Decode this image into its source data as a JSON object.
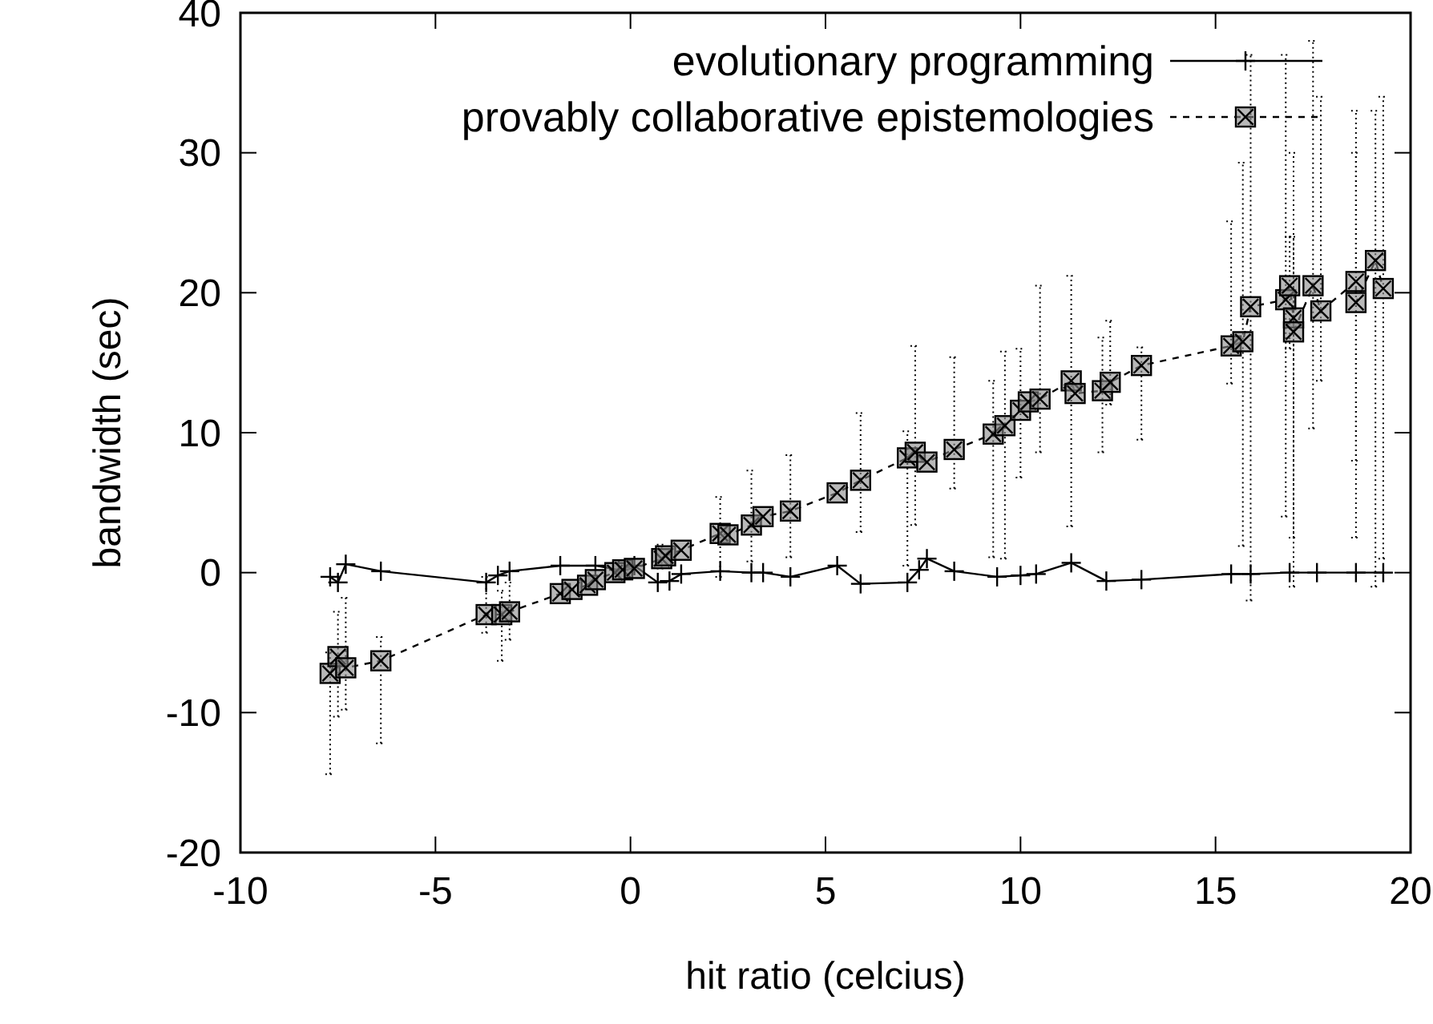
{
  "chart_data": {
    "type": "line",
    "xlabel": "hit ratio (celcius)",
    "ylabel": "bandwidth (sec)",
    "xlim": [
      -10,
      20
    ],
    "xticks": [
      -10,
      -5,
      0,
      5,
      10,
      15,
      20
    ],
    "ylim": [
      -20,
      40
    ],
    "yticks": [
      -20,
      -10,
      0,
      10,
      20,
      30,
      40
    ],
    "grid": false,
    "legend": "top right",
    "series": [
      {
        "name": "evolutionary programming",
        "color": "#000000",
        "marker": "cross",
        "line_style": "solid",
        "x": [
          -7.7,
          -7.5,
          -7.3,
          -6.4,
          -3.7,
          -3.4,
          -3.1,
          -1.8,
          -0.9,
          -0.3,
          0.1,
          0.7,
          1.0,
          1.3,
          2.3,
          3.1,
          3.4,
          4.1,
          5.3,
          5.9,
          7.1,
          7.4,
          7.6,
          8.3,
          9.4,
          10.0,
          10.4,
          11.3,
          12.2,
          13.1,
          15.4,
          15.9,
          16.9,
          17.6,
          18.6,
          19.3
        ],
        "values": [
          -0.3,
          -0.7,
          0.6,
          0.1,
          -0.7,
          -0.2,
          0.1,
          0.5,
          0.5,
          0.2,
          0.5,
          -0.7,
          -0.6,
          -0.1,
          0.1,
          0,
          0,
          -0.3,
          0.5,
          -0.8,
          -0.7,
          0.2,
          1.0,
          0.1,
          -0.3,
          -0.2,
          -0.1,
          0.7,
          -0.6,
          -0.5,
          -0.1,
          -0.1,
          0,
          0,
          0,
          0
        ]
      },
      {
        "name": "provably collaborative epistemologies",
        "color": "#000000",
        "marker": "square",
        "line_style": "dashed",
        "x": [
          -7.7,
          -7.5,
          -7.3,
          -6.4,
          -3.7,
          -3.3,
          -3.1,
          -1.8,
          -1.5,
          -1.1,
          -0.9,
          -0.4,
          -0.2,
          0.1,
          0.8,
          0.9,
          1.3,
          2.3,
          2.5,
          3.1,
          3.4,
          4.1,
          5.3,
          5.9,
          7.1,
          7.3,
          7.6,
          8.3,
          9.3,
          9.6,
          10.0,
          10.2,
          10.5,
          11.3,
          11.4,
          12.1,
          12.3,
          13.1,
          15.4,
          15.7,
          15.9,
          16.8,
          16.9,
          17.0,
          17.0,
          17.5,
          17.7,
          18.6,
          18.6,
          19.1,
          19.3
        ],
        "values": [
          -7.2,
          -6.0,
          -6.8,
          -6.3,
          -3.0,
          -3.0,
          -2.8,
          -1.5,
          -1.2,
          -0.9,
          -0.5,
          0,
          0.2,
          0.3,
          1.0,
          1.2,
          1.6,
          2.8,
          2.7,
          3.4,
          4.0,
          4.4,
          5.7,
          6.6,
          8.2,
          8.6,
          7.9,
          8.8,
          9.9,
          10.5,
          11.6,
          12.2,
          12.4,
          13.7,
          12.8,
          13.0,
          13.6,
          14.8,
          16.2,
          16.5,
          19.0,
          19.5,
          20.5,
          18.2,
          17.2,
          20.5,
          18.7,
          20.8,
          19.3,
          22.3,
          20.3
        ],
        "errors": [
          [
            -14.4,
            -5.7
          ],
          [
            -10.3,
            -2.8
          ],
          [
            -9.8,
            -1.8
          ],
          [
            -12.2,
            -4.6
          ],
          [
            -4.3,
            -0.3
          ],
          [
            -6.3,
            -1.3
          ],
          [
            -4.8,
            -0.7
          ],
          null,
          null,
          null,
          null,
          null,
          null,
          null,
          [
            0.3,
            2.0
          ],
          null,
          null,
          [
            -0.3,
            5.4
          ],
          null,
          [
            0.8,
            7.3
          ],
          null,
          [
            1.1,
            8.4
          ],
          null,
          [
            2.9,
            11.4
          ],
          [
            0.5,
            10.1
          ],
          [
            3.4,
            16.2
          ],
          null,
          [
            6.0,
            15.4
          ],
          [
            1.1,
            13.7
          ],
          [
            1.0,
            15.8
          ],
          [
            6.8,
            16.0
          ],
          null,
          [
            8.6,
            20.5
          ],
          [
            3.3,
            21.2
          ],
          null,
          [
            8.6,
            16.8
          ],
          [
            12.0,
            18.0
          ],
          [
            9.5,
            16.1
          ],
          [
            13.5,
            25.1
          ],
          [
            1.9,
            29.3
          ],
          [
            -2,
            37
          ],
          [
            4,
            37
          ],
          [
            16,
            24
          ],
          [
            2.5,
            30
          ],
          [
            -1,
            24
          ],
          [
            10.3,
            38
          ],
          [
            13.7,
            34
          ],
          [
            8,
            30
          ],
          [
            2.5,
            33
          ],
          [
            -1,
            33
          ],
          [
            1,
            34
          ]
        ]
      }
    ]
  }
}
